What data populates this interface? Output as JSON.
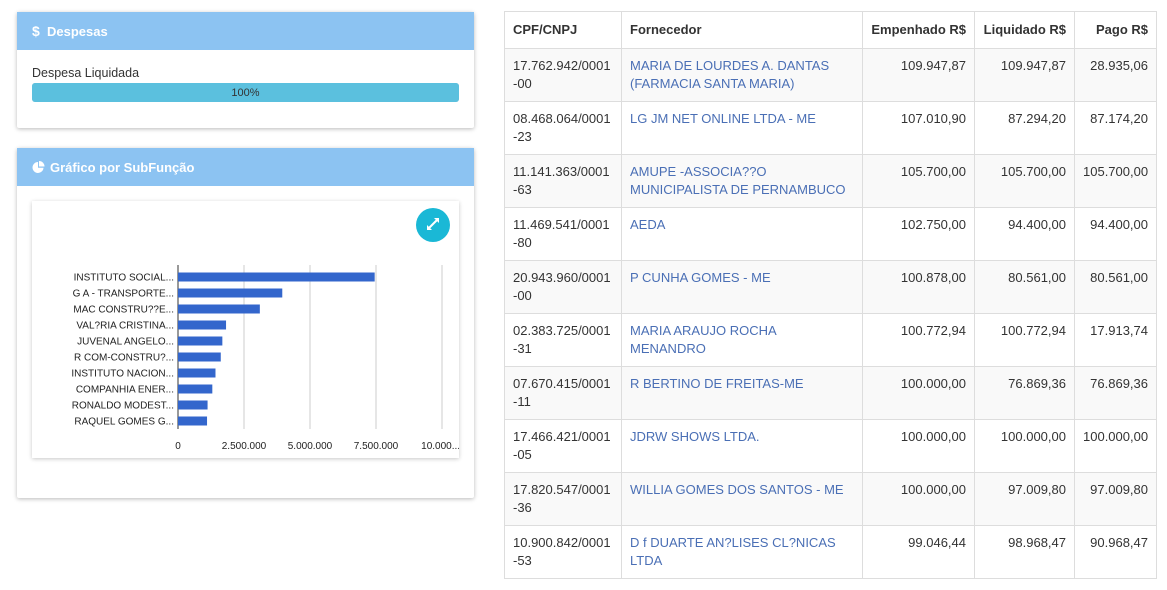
{
  "despesas_panel": {
    "title": "Despesas",
    "icon": "dollar-icon",
    "progress_label": "Despesa Liquidada",
    "progress_text": "100%",
    "progress_value": 100,
    "bar_color": "#5bc0de"
  },
  "grafico_panel": {
    "title": "Gráfico por SubFunção",
    "icon": "pie-chart-icon",
    "expand_icon": "expand-icon"
  },
  "chart_data": {
    "type": "bar",
    "orientation": "horizontal",
    "categories": [
      "INSTITUTO SOCIAL...",
      "G A - TRANSPORTE...",
      "MAC CONSTRU??E...",
      "VAL?RIA CRISTINA...",
      "JUVENAL ANGELO...",
      "R COM-CONSTRU?...",
      "INSTITUTO NACION...",
      "COMPANHIA ENER...",
      "RONALDO MODEST...",
      "RAQUEL GOMES G..."
    ],
    "values": [
      7450000,
      3950000,
      3100000,
      1820000,
      1680000,
      1620000,
      1420000,
      1300000,
      1120000,
      1100000
    ],
    "xlim": [
      0,
      10000000
    ],
    "ticks": [
      "0",
      "2.500.000",
      "5.000.000",
      "7.500.000",
      "10.000...."
    ],
    "tick_values": [
      0,
      2500000,
      5000000,
      7500000,
      10000000
    ],
    "grid": true,
    "bar_color": "#3366cc"
  },
  "table": {
    "headers": [
      "CPF/CNPJ",
      "Fornecedor",
      "Empenhado R$",
      "Liquidado R$",
      "Pago R$"
    ],
    "rows": [
      {
        "doc": "17.762.942/0001-00",
        "fornecedor": "MARIA DE LOURDES A. DANTAS (FARMACIA SANTA MARIA)",
        "empenhado": "109.947,87",
        "liquidado": "109.947,87",
        "pago": "28.935,06"
      },
      {
        "doc": "08.468.064/0001-23",
        "fornecedor": "LG JM NET ONLINE LTDA - ME",
        "empenhado": "107.010,90",
        "liquidado": "87.294,20",
        "pago": "87.174,20"
      },
      {
        "doc": "11.141.363/0001-63",
        "fornecedor": "AMUPE -ASSOCIA??O MUNICIPALISTA DE PERNAMBUCO",
        "empenhado": "105.700,00",
        "liquidado": "105.700,00",
        "pago": "105.700,00"
      },
      {
        "doc": "11.469.541/0001-80",
        "fornecedor": "AEDA",
        "empenhado": "102.750,00",
        "liquidado": "94.400,00",
        "pago": "94.400,00"
      },
      {
        "doc": "20.943.960/0001-00",
        "fornecedor": "P CUNHA GOMES - ME",
        "empenhado": "100.878,00",
        "liquidado": "80.561,00",
        "pago": "80.561,00"
      },
      {
        "doc": "02.383.725/0001-31",
        "fornecedor": "MARIA ARAUJO ROCHA MENANDRO",
        "empenhado": "100.772,94",
        "liquidado": "100.772,94",
        "pago": "17.913,74"
      },
      {
        "doc": "07.670.415/0001-11",
        "fornecedor": "R BERTINO DE FREITAS-ME",
        "empenhado": "100.000,00",
        "liquidado": "76.869,36",
        "pago": "76.869,36"
      },
      {
        "doc": "17.466.421/0001-05",
        "fornecedor": "JDRW SHOWS LTDA.",
        "empenhado": "100.000,00",
        "liquidado": "100.000,00",
        "pago": "100.000,00"
      },
      {
        "doc": "17.820.547/0001-36",
        "fornecedor": "WILLIA GOMES DOS SANTOS - ME",
        "empenhado": "100.000,00",
        "liquidado": "97.009,80",
        "pago": "97.009,80"
      },
      {
        "doc": "10.900.842/0001-53",
        "fornecedor": "D f DUARTE AN?LISES CL?NICAS LTDA",
        "empenhado": "99.046,44",
        "liquidado": "98.968,47",
        "pago": "90.968,47"
      }
    ]
  },
  "colors": {
    "panel_header": "#8cc3f2",
    "link": "#4a6fb5",
    "expand_button": "#1ab8d6"
  }
}
